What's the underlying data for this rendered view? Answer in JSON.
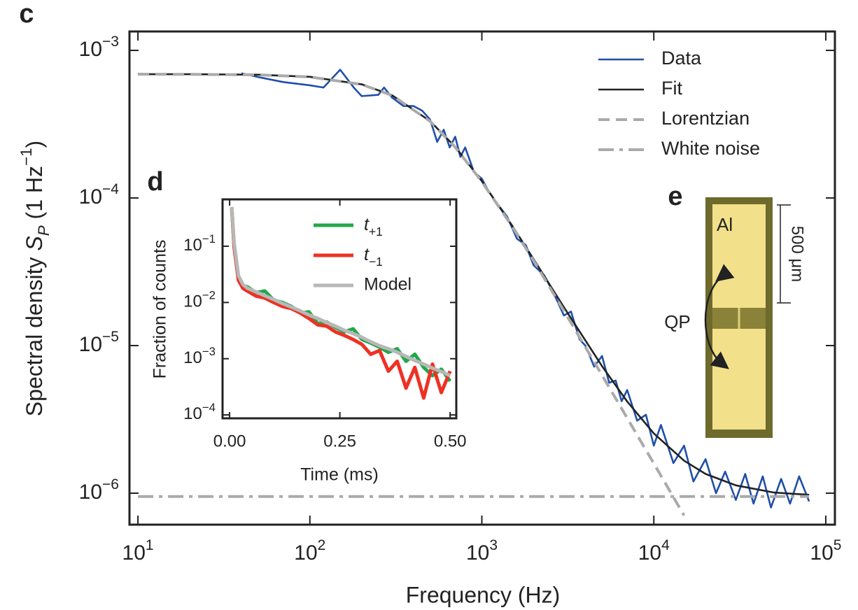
{
  "chart_data": [
    {
      "type": "line",
      "panel_label": "c",
      "xlabel": "Frequency (Hz)",
      "ylabel": [
        {
          "text": "Spectral density "
        },
        {
          "text": "S",
          "style": "italic"
        },
        {
          "text": "P",
          "style": "sub-italic"
        },
        {
          "text": " (1 Hz"
        },
        {
          "text": "−1",
          "style": "sup"
        },
        {
          "text": ")"
        }
      ],
      "xscale": "log",
      "yscale": "log",
      "xlim": [
        8.93,
        113000
      ],
      "ylim": [
        6.12e-07,
        0.001343
      ],
      "xticks": [
        {
          "value": 10,
          "label": [
            {
              "text": "10"
            },
            {
              "text": "1",
              "style": "sup"
            }
          ]
        },
        {
          "value": 100,
          "label": [
            {
              "text": "10"
            },
            {
              "text": "2",
              "style": "sup"
            }
          ]
        },
        {
          "value": 1000,
          "label": [
            {
              "text": "10"
            },
            {
              "text": "3",
              "style": "sup"
            }
          ]
        },
        {
          "value": 10000,
          "label": [
            {
              "text": "10"
            },
            {
              "text": "4",
              "style": "sup"
            }
          ]
        },
        {
          "value": 100000,
          "label": [
            {
              "text": "10"
            },
            {
              "text": "5",
              "style": "sup"
            }
          ]
        }
      ],
      "yticks": [
        {
          "value": 1e-06,
          "label": [
            {
              "text": "10"
            },
            {
              "text": "−6",
              "style": "sup"
            }
          ]
        },
        {
          "value": 1e-05,
          "label": [
            {
              "text": "10"
            },
            {
              "text": "−5",
              "style": "sup"
            }
          ]
        },
        {
          "value": 0.0001,
          "label": [
            {
              "text": "10"
            },
            {
              "text": "−4",
              "style": "sup"
            }
          ]
        },
        {
          "value": 0.001,
          "label": [
            {
              "text": "10"
            },
            {
              "text": "−3",
              "style": "sup"
            }
          ]
        }
      ],
      "grid": false,
      "legend": "upper right",
      "series": [
        {
          "name": "Data",
          "color": "#1f4fa8",
          "dash": "solid",
          "x": [
            40,
            50,
            70,
            100,
            120,
            150,
            180,
            200,
            250,
            270,
            300,
            350,
            400,
            450,
            500,
            550,
            600,
            650,
            700,
            750,
            800,
            900,
            1000,
            1100,
            1200,
            1400,
            1600,
            1800,
            2000,
            2300,
            2600,
            3000,
            3300,
            3700,
            4000,
            4500,
            5000,
            5500,
            6000,
            6500,
            7000,
            8000,
            9000,
            10000,
            11000,
            13000,
            15000,
            17000,
            20000,
            23000,
            26000,
            30000,
            34000,
            38000,
            43000,
            48000,
            55000,
            62000,
            70000,
            80000
          ],
          "values": [
            0.0007,
            0.00066,
            0.00061,
            0.00058,
            0.00056,
            0.00074,
            0.00056,
            0.00049,
            0.0005,
            0.00056,
            0.00048,
            0.00042,
            0.00042,
            0.00039,
            0.00034,
            0.00024,
            0.00029,
            0.00022,
            0.00026,
            0.00019,
            0.00022,
            0.00015,
            0.000135,
            0.00011,
            9.5e-05,
            7.5e-05,
            5.3e-05,
            4.8e-05,
            3.5e-05,
            3e-05,
            2.3e-05,
            1.6e-05,
            1.7e-05,
            1.1e-05,
            1e-05,
            7.2e-06,
            8.5e-06,
            5.6e-06,
            5.8e-06,
            4.2e-06,
            5e-06,
            3.1e-06,
            3.4e-06,
            2.1e-06,
            2.9e-06,
            1.6e-06,
            2.1e-06,
            1.2e-06,
            1.7e-06,
            1e-06,
            1.4e-06,
            9e-07,
            1.35e-06,
            8.5e-07,
            1.3e-06,
            8e-07,
            1.25e-06,
            8.5e-07,
            1.3e-06,
            8.8e-07
          ]
        },
        {
          "name": "Fit",
          "color": "#222222",
          "dash": "solid",
          "x": [
            10,
            20,
            50,
            100,
            200,
            300,
            500,
            700,
            1000,
            1500,
            2000,
            3000,
            5000,
            7000,
            10000,
            15000,
            20000,
            30000,
            50000,
            80000
          ],
          "values": [
            0.00069,
            0.00069,
            0.000684,
            0.000662,
            0.000589,
            0.000497,
            0.000332,
            0.000222,
            0.00013,
            6.5e-05,
            3.85e-05,
            1.82e-05,
            7.25e-06,
            4.18e-06,
            2.54e-06,
            1.66e-06,
            1.35e-06,
            1.13e-06,
            1.01e-06,
            9.75e-07
          ]
        },
        {
          "name": "Lorentzian",
          "color": "#aaaaaa",
          "dash": "dashed",
          "x": [
            10,
            20,
            50,
            100,
            200,
            300,
            500,
            700,
            1000,
            1500,
            2000,
            3000,
            5000,
            7000,
            10000,
            13000,
            15000
          ],
          "values": [
            0.00069,
            0.000688,
            0.000683,
            0.000661,
            0.000588,
            0.000496,
            0.000331,
            0.000221,
            0.000129,
            6.41e-05,
            3.76e-05,
            1.72e-05,
            6.3e-06,
            3.23e-06,
            1.59e-06,
            9.4e-07,
            7.06e-07
          ]
        },
        {
          "name": "White noise",
          "color": "#aaaaaa",
          "dash": "dashdot",
          "x": [
            10,
            80000
          ],
          "values": [
            9.5e-07,
            9.5e-07
          ]
        }
      ]
    },
    {
      "type": "line",
      "panel_label": "d",
      "xlabel": "Time (ms)",
      "ylabel": "Fraction of counts",
      "xscale": "linear",
      "yscale": "log",
      "xlim": [
        -0.016,
        0.514
      ],
      "ylim": [
        8.7e-05,
        0.682
      ],
      "xticks": [
        {
          "value": 0,
          "label": "0.00"
        },
        {
          "value": 0.25,
          "label": "0.25"
        },
        {
          "value": 0.5,
          "label": "0.50"
        }
      ],
      "yticks": [
        {
          "value": 0.0001,
          "label": [
            {
              "text": "10"
            },
            {
              "text": "−4",
              "style": "sup"
            }
          ]
        },
        {
          "value": 0.001,
          "label": [
            {
              "text": "10"
            },
            {
              "text": "−3",
              "style": "sup"
            }
          ]
        },
        {
          "value": 0.01,
          "label": [
            {
              "text": "10"
            },
            {
              "text": "−2",
              "style": "sup"
            }
          ]
        },
        {
          "value": 0.1,
          "label": [
            {
              "text": "10"
            },
            {
              "text": "−1",
              "style": "sup"
            }
          ]
        }
      ],
      "grid": false,
      "legend": "upper right",
      "x": [
        0.005,
        0.01,
        0.02,
        0.03,
        0.04,
        0.06,
        0.08,
        0.1,
        0.12,
        0.14,
        0.16,
        0.18,
        0.2,
        0.22,
        0.24,
        0.26,
        0.28,
        0.3,
        0.32,
        0.34,
        0.36,
        0.38,
        0.4,
        0.42,
        0.44,
        0.46,
        0.48,
        0.5
      ],
      "series": [
        {
          "name": [
            {
              "text": "t",
              "style": "italic"
            },
            {
              "text": "+1",
              "style": "sub"
            }
          ],
          "color": "#22a84a",
          "values": [
            0.45,
            0.11,
            0.028,
            0.02,
            0.019,
            0.015,
            0.016,
            0.011,
            0.01,
            0.0085,
            0.0065,
            0.0068,
            0.0042,
            0.0045,
            0.0036,
            0.003,
            0.0034,
            0.0022,
            0.0019,
            0.0016,
            0.0013,
            0.0015,
            0.0009,
            0.0012,
            0.0007,
            0.0005,
            0.00065,
            0.0004
          ]
        },
        {
          "name": [
            {
              "text": "t",
              "style": "italic"
            },
            {
              "text": "−1",
              "style": "sub"
            }
          ],
          "color": "#ee3124",
          "values": [
            0.48,
            0.1,
            0.025,
            0.018,
            0.016,
            0.013,
            0.012,
            0.01,
            0.0085,
            0.0078,
            0.0065,
            0.0052,
            0.004,
            0.0038,
            0.003,
            0.0026,
            0.0022,
            0.0018,
            0.0012,
            0.0014,
            0.0006,
            0.0009,
            0.0003,
            0.0007,
            0.0002,
            0.0008,
            0.00025,
            0.0006
          ]
        },
        {
          "name": "Model",
          "color": "#b8b8b8",
          "values": [
            0.5,
            0.12,
            0.03,
            0.021,
            0.018,
            0.0154,
            0.0132,
            0.0113,
            0.0096,
            0.0083,
            0.0071,
            0.006,
            0.0052,
            0.0044,
            0.0038,
            0.0032,
            0.0028,
            0.0024,
            0.002,
            0.0017,
            0.0015,
            0.0013,
            0.0011,
            0.00093,
            0.0008,
            0.00068,
            0.00059,
            0.0005
          ]
        }
      ]
    }
  ],
  "device": {
    "panel_label": "e",
    "material": "Al",
    "carrier": "QP",
    "scale_bar": "500 μm"
  }
}
